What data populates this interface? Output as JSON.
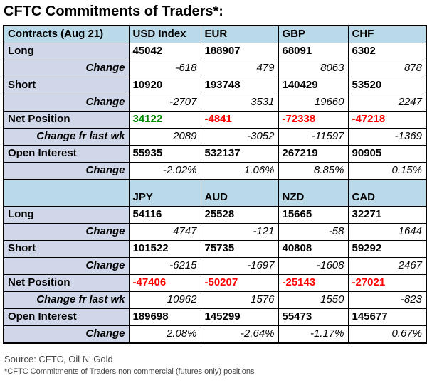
{
  "colors": {
    "header_bg": "#badae9",
    "label_bg": "#cfd7e9",
    "positive": "#008a00",
    "negative": "#ff0000"
  },
  "chart_data": {
    "type": "table",
    "title": "CFTC Commitments of Traders*:",
    "sections": [
      {
        "header": [
          "Contracts (Aug 21)",
          "USD Index",
          "EUR",
          "GBP",
          "CHF"
        ],
        "rows": [
          {
            "label": "Long",
            "style": "metric",
            "values": [
              "45042",
              "188907",
              "68091",
              "6302"
            ]
          },
          {
            "label": "Change",
            "style": "change",
            "values": [
              "-618",
              "479",
              "8063",
              "878"
            ]
          },
          {
            "label": "Short",
            "style": "metric",
            "values": [
              "10920",
              "193748",
              "140429",
              "53520"
            ]
          },
          {
            "label": "Change",
            "style": "change",
            "values": [
              "-2707",
              "3531",
              "19660",
              "2247"
            ]
          },
          {
            "label": "Net Position",
            "style": "net",
            "values": [
              "34122",
              "-4841",
              "-72338",
              "-47218"
            ]
          },
          {
            "label": "Change fr last wk",
            "style": "change",
            "values": [
              "2089",
              "-3052",
              "-11597",
              "-1369"
            ]
          },
          {
            "label": "Open Interest",
            "style": "metric",
            "values": [
              "55935",
              "532137",
              "267219",
              "90905"
            ]
          },
          {
            "label": "Change",
            "style": "change",
            "values": [
              "-2.02%",
              "1.06%",
              "8.85%",
              "0.15%"
            ]
          }
        ]
      },
      {
        "header": [
          "",
          "JPY",
          "AUD",
          "NZD",
          "CAD"
        ],
        "rows": [
          {
            "label": "Long",
            "style": "metric",
            "values": [
              "54116",
              "25528",
              "15665",
              "32271"
            ]
          },
          {
            "label": "Change",
            "style": "change",
            "values": [
              "4747",
              "-121",
              "-58",
              "1644"
            ]
          },
          {
            "label": "Short",
            "style": "metric",
            "values": [
              "101522",
              "75735",
              "40808",
              "59292"
            ]
          },
          {
            "label": "Change",
            "style": "change",
            "values": [
              "-6215",
              "-1697",
              "-1608",
              "2467"
            ]
          },
          {
            "label": "Net Position",
            "style": "net",
            "values": [
              "-47406",
              "-50207",
              "-25143",
              "-27021"
            ]
          },
          {
            "label": "Change fr last wk",
            "style": "change",
            "values": [
              "10962",
              "1576",
              "1550",
              "-823"
            ]
          },
          {
            "label": "Open Interest",
            "style": "metric",
            "values": [
              "189698",
              "145299",
              "55473",
              "145677"
            ]
          },
          {
            "label": "Change",
            "style": "change",
            "values": [
              "2.08%",
              "-2.64%",
              "-1.17%",
              "0.67%"
            ]
          }
        ]
      }
    ]
  },
  "footer": {
    "source": "Source: CFTC, Oil N' Gold",
    "note": "*CFTC Commitments of Traders non commercial (futures only) positions"
  }
}
